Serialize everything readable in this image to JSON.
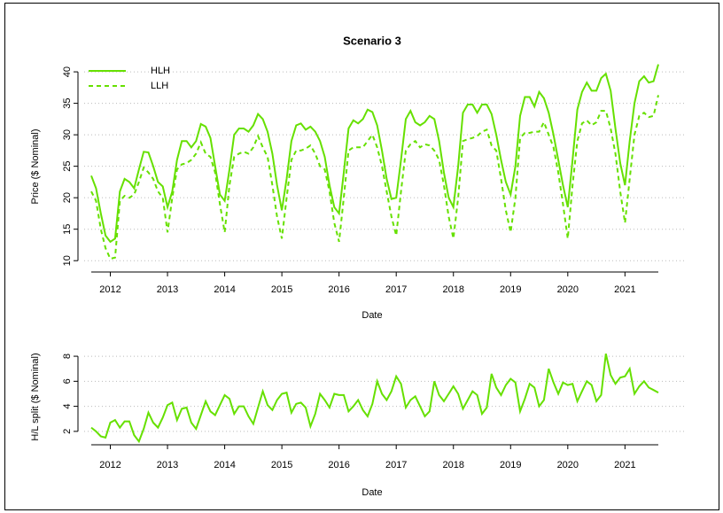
{
  "chart_data": [
    {
      "type": "line",
      "title": "Scenario 3",
      "x_label": "Date",
      "y_label": "Price ($ Nominal)",
      "categories": [
        null,
        null,
        null,
        null,
        "2012",
        null,
        null,
        null,
        null,
        null,
        null,
        null,
        null,
        null,
        null,
        null,
        "2013",
        null,
        null,
        null,
        null,
        null,
        null,
        null,
        null,
        null,
        null,
        null,
        "2014",
        null,
        null,
        null,
        null,
        null,
        null,
        null,
        null,
        null,
        null,
        null,
        "2015",
        null,
        null,
        null,
        null,
        null,
        null,
        null,
        null,
        null,
        null,
        null,
        "2016",
        null,
        null,
        null,
        null,
        null,
        null,
        null,
        null,
        null,
        null,
        null,
        "2017",
        null,
        null,
        null,
        null,
        null,
        null,
        null,
        null,
        null,
        null,
        null,
        "2018",
        null,
        null,
        null,
        null,
        null,
        null,
        null,
        null,
        null,
        null,
        null,
        "2019",
        null,
        null,
        null,
        null,
        null,
        null,
        null,
        null,
        null,
        null,
        null,
        "2020",
        null,
        null,
        null,
        null,
        null,
        null,
        null,
        null,
        null,
        null,
        null,
        "2021",
        null,
        null,
        null,
        null,
        null,
        null,
        null
      ],
      "series": [
        {
          "name": "HLH",
          "color": "#66e000",
          "linestyle": "solid",
          "values": [
            23.5,
            21.5,
            17.5,
            14,
            13,
            13.5,
            21,
            23,
            22.5,
            21.5,
            24.5,
            27.3,
            27.2,
            25,
            22.5,
            21.8,
            18.5,
            21,
            26,
            29,
            29,
            28,
            29,
            31.7,
            31.3,
            29.5,
            25,
            20.5,
            19.5,
            24.5,
            30,
            31,
            31,
            30.5,
            31.5,
            33.3,
            32.5,
            30.5,
            27,
            22,
            18,
            23,
            29,
            31.5,
            31.8,
            30.8,
            31.3,
            30.5,
            29,
            26.5,
            22,
            18.5,
            17.5,
            24,
            31,
            32.3,
            31.8,
            32.5,
            34,
            33.6,
            31.5,
            27.5,
            23,
            19.8,
            20,
            26,
            32.5,
            33.8,
            32,
            31.5,
            32,
            33,
            32.5,
            29,
            24,
            20,
            18.5,
            25,
            33.5,
            34.8,
            34.8,
            33.5,
            34.8,
            34.8,
            33.3,
            30,
            26,
            22.5,
            20.5,
            25,
            33,
            36,
            36,
            34.5,
            36.8,
            35.8,
            33.5,
            30,
            26,
            22,
            18.5,
            26,
            34,
            36.8,
            38.3,
            37,
            37,
            39,
            39.7,
            37,
            31,
            25.5,
            22,
            29,
            35,
            38.5,
            39.3,
            38.3,
            38.5,
            41.2
          ]
        },
        {
          "name": "LLH",
          "color": "#66e000",
          "linestyle": "dashed",
          "values": [
            21,
            19.5,
            15,
            12,
            10.3,
            10.5,
            19.5,
            20.3,
            20,
            20.5,
            22.5,
            24.8,
            24,
            23,
            21,
            20,
            14.5,
            20,
            24.5,
            25.3,
            25.5,
            26,
            27,
            28.8,
            27,
            26.5,
            24,
            19,
            14.5,
            22,
            26.5,
            27,
            27.3,
            27,
            28,
            29.8,
            28,
            26.5,
            22,
            17,
            13.5,
            20,
            26,
            27.5,
            27.5,
            27.8,
            28.3,
            27,
            25,
            24.5,
            21,
            16,
            13,
            20,
            27.5,
            28,
            28,
            28,
            29,
            30,
            28,
            25,
            21,
            17,
            14,
            21,
            27.5,
            28.5,
            29,
            28,
            28.5,
            28.3,
            27.5,
            26,
            22,
            17,
            13.5,
            20,
            29,
            29.3,
            29.5,
            29.8,
            30.5,
            30.8,
            28.3,
            27.5,
            23,
            18,
            14.5,
            20,
            29.5,
            30.3,
            30.3,
            30.5,
            30.5,
            32,
            30,
            28,
            24,
            19,
            13.5,
            22,
            29,
            31.8,
            32.3,
            31.5,
            32,
            33.8,
            33.8,
            31,
            27,
            21,
            16,
            23,
            30,
            33,
            33.5,
            32.8,
            33,
            36.3
          ]
        }
      ],
      "ylim": [
        8.2,
        41.7
      ],
      "yticks": [
        10,
        15,
        20,
        25,
        30,
        35,
        40
      ],
      "grid": true,
      "legend": "topleft"
    },
    {
      "type": "line",
      "x_label": "Date",
      "y_label": "H/L split ($ Nominal)",
      "categories": [
        null,
        null,
        null,
        null,
        "2012",
        null,
        null,
        null,
        null,
        null,
        null,
        null,
        null,
        null,
        null,
        null,
        "2013",
        null,
        null,
        null,
        null,
        null,
        null,
        null,
        null,
        null,
        null,
        null,
        "2014",
        null,
        null,
        null,
        null,
        null,
        null,
        null,
        null,
        null,
        null,
        null,
        "2015",
        null,
        null,
        null,
        null,
        null,
        null,
        null,
        null,
        null,
        null,
        null,
        "2016",
        null,
        null,
        null,
        null,
        null,
        null,
        null,
        null,
        null,
        null,
        null,
        "2017",
        null,
        null,
        null,
        null,
        null,
        null,
        null,
        null,
        null,
        null,
        null,
        "2018",
        null,
        null,
        null,
        null,
        null,
        null,
        null,
        null,
        null,
        null,
        null,
        "2019",
        null,
        null,
        null,
        null,
        null,
        null,
        null,
        null,
        null,
        null,
        null,
        "2020",
        null,
        null,
        null,
        null,
        null,
        null,
        null,
        null,
        null,
        null,
        null,
        "2021",
        null,
        null,
        null,
        null,
        null,
        null,
        null
      ],
      "color": "#66e000",
      "values": [
        2.3,
        2.0,
        1.6,
        1.5,
        2.7,
        2.9,
        2.3,
        2.8,
        2.8,
        1.7,
        1.2,
        2.2,
        3.5,
        2.7,
        2.3,
        3.1,
        4.1,
        4.3,
        2.9,
        3.8,
        3.9,
        2.7,
        2.2,
        3.3,
        4.4,
        3.6,
        3.3,
        4.1,
        4.9,
        4.6,
        3.4,
        4.0,
        4.0,
        3.2,
        2.6,
        3.9,
        5.2,
        4.1,
        3.7,
        4.5,
        5.0,
        5.1,
        3.5,
        4.2,
        4.3,
        3.9,
        2.4,
        3.4,
        5.0,
        4.5,
        3.9,
        5.0,
        4.9,
        4.9,
        3.6,
        4.0,
        4.5,
        3.7,
        3.2,
        4.2,
        6.0,
        5.0,
        4.5,
        5.2,
        6.4,
        5.8,
        3.9,
        4.5,
        4.8,
        4.0,
        3.2,
        3.6,
        6.0,
        4.9,
        4.4,
        5.0,
        5.6,
        5.0,
        3.8,
        4.5,
        5.2,
        4.9,
        3.4,
        3.9,
        6.6,
        5.5,
        4.9,
        5.7,
        6.2,
        5.9,
        3.6,
        4.6,
        5.8,
        5.5,
        4.0,
        4.5,
        7.0,
        5.9,
        5.0,
        5.9,
        5.7,
        5.8,
        4.4,
        5.2,
        6.0,
        5.7,
        4.4,
        4.9,
        8.2,
        6.5,
        5.8,
        6.3,
        6.4,
        7.0,
        5.0,
        5.6,
        6.0,
        5.5,
        5.3,
        5.1
      ],
      "ylim": [
        1.0,
        8.5
      ],
      "yticks": [
        2,
        4,
        6,
        8
      ],
      "grid": true
    }
  ]
}
